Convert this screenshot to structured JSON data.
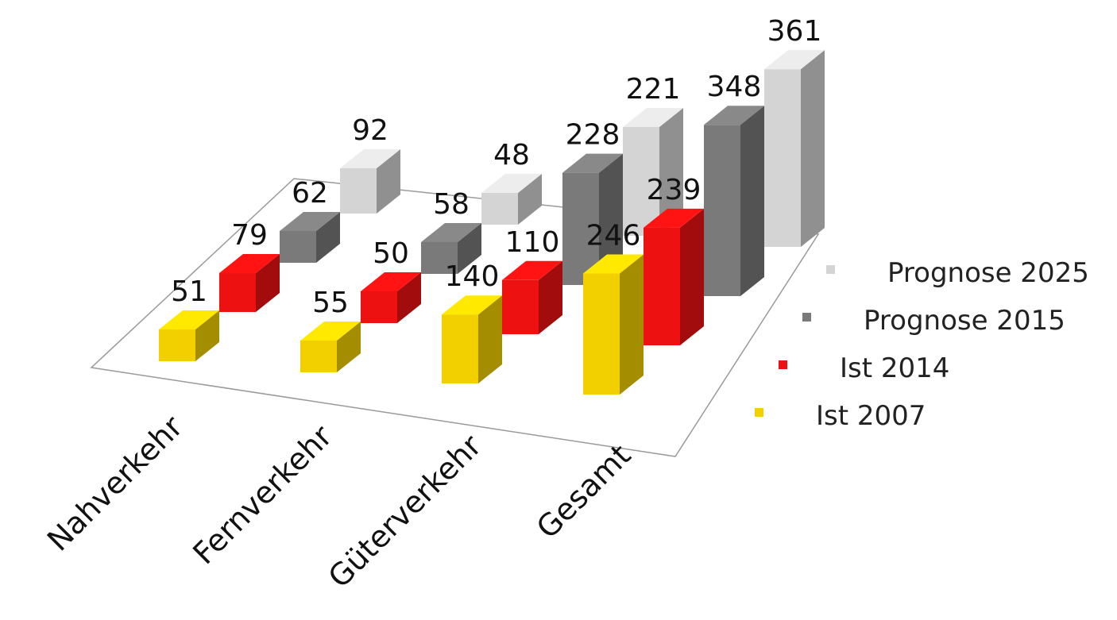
{
  "chart_data": {
    "type": "bar",
    "categories": [
      "Nahverkehr",
      "Fernverkehr",
      "Güterverkehr",
      "Gesamt"
    ],
    "series": [
      {
        "name": "Ist 2007",
        "color": "#f2d000",
        "values": [
          51,
          55,
          140,
          246
        ]
      },
      {
        "name": "Ist 2014",
        "color": "#ee1111",
        "values": [
          79,
          50,
          110,
          239
        ]
      },
      {
        "name": "Prognose 2015",
        "color": "#7a7a7a",
        "values": [
          62,
          58,
          228,
          348
        ]
      },
      {
        "name": "Prognose 2025",
        "color": "#d4d4d4",
        "values": [
          92,
          48,
          221,
          361
        ]
      }
    ],
    "legend_order": [
      "Prognose 2025",
      "Prognose 2015",
      "Ist 2014",
      "Ist 2007"
    ],
    "legend_position": "right",
    "grid": false,
    "three_d": true
  }
}
